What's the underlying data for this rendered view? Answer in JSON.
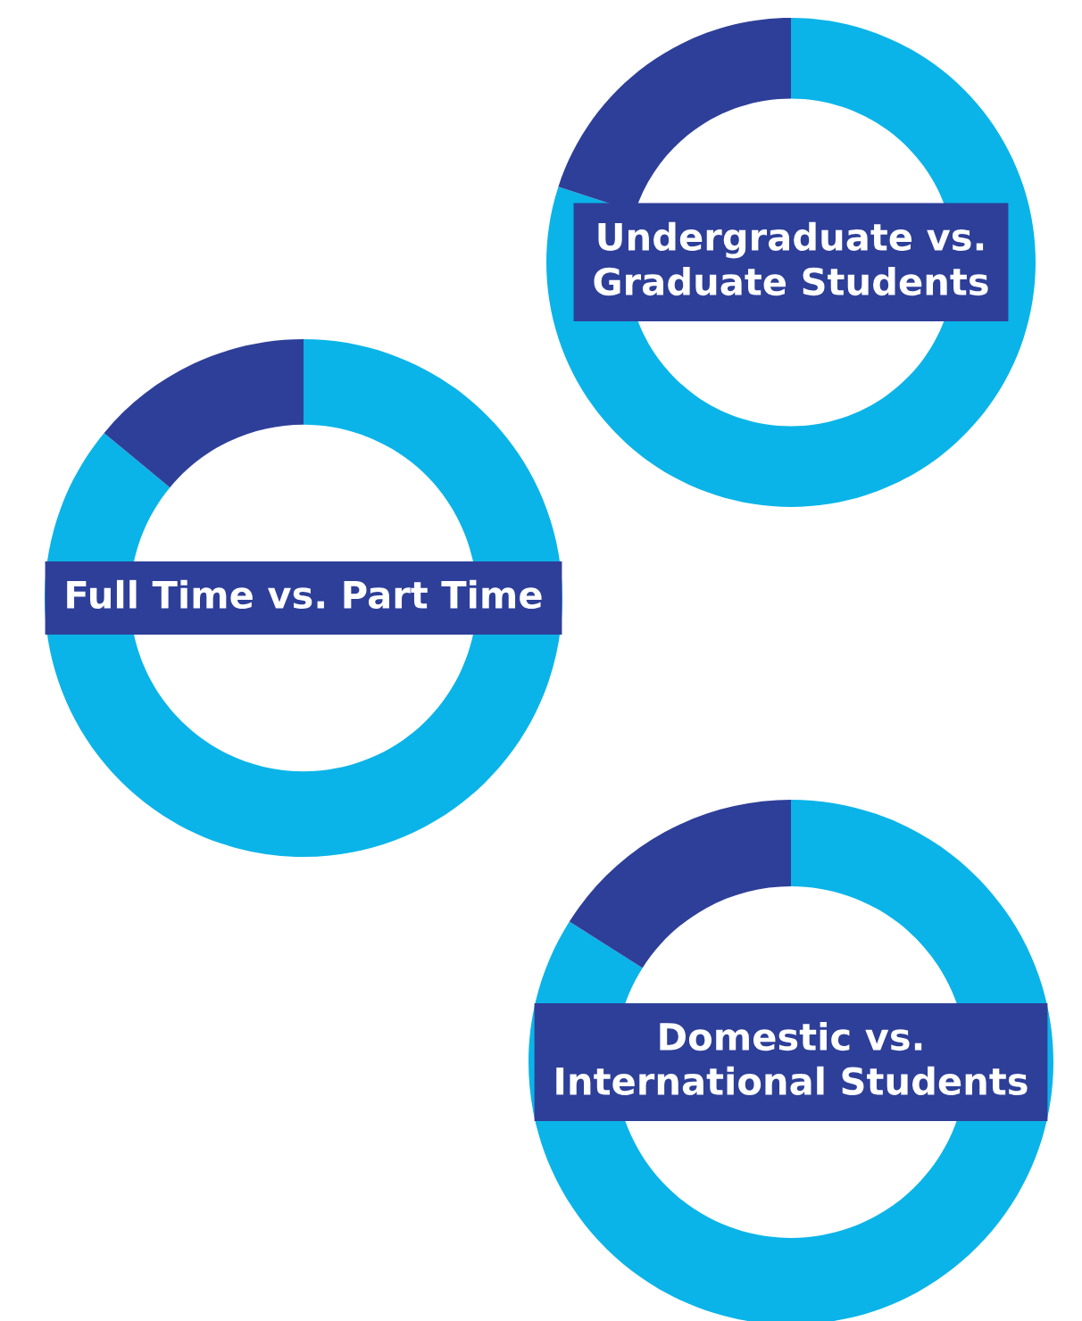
{
  "chart_data": [
    {
      "type": "donut",
      "title": "Undergraduate vs.\nGraduate Students",
      "categories": [
        null,
        null
      ],
      "values": [
        80,
        20
      ],
      "colors": [
        "#0ab4e8",
        "#2e3f99"
      ]
    },
    {
      "type": "donut",
      "title": "Full Time vs. Part Time",
      "categories": [
        null,
        null
      ],
      "values": [
        86,
        14
      ],
      "colors": [
        "#0ab4e8",
        "#2e3f99"
      ]
    },
    {
      "type": "donut",
      "title": "Domestic vs.\nInternational Students",
      "categories": [
        null,
        null
      ],
      "values": [
        84,
        16
      ],
      "colors": [
        "#0ab4e8",
        "#2e3f99"
      ]
    }
  ]
}
